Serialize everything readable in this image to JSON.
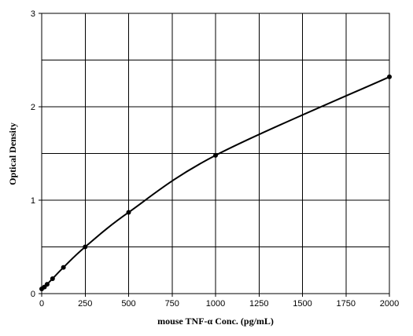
{
  "chart_data": {
    "type": "line",
    "title": "",
    "xlabel": "mouse TNF-α Conc. (pg/mL)",
    "ylabel": "Optical Density",
    "xlim": [
      0,
      2000
    ],
    "ylim": [
      0,
      3
    ],
    "x_ticks": [
      0,
      250,
      500,
      750,
      1000,
      1250,
      1500,
      1750,
      2000
    ],
    "y_ticks": [
      0,
      1,
      2,
      3
    ],
    "y_minor_gridlines": [
      0.5,
      1.5,
      2.5
    ],
    "grid": true,
    "legend": "none",
    "series": [
      {
        "points": [
          {
            "x": 0,
            "y": 0.05
          },
          {
            "x": 15.6,
            "y": 0.07
          },
          {
            "x": 31.25,
            "y": 0.1
          },
          {
            "x": 62.5,
            "y": 0.16
          },
          {
            "x": 125,
            "y": 0.28
          },
          {
            "x": 250,
            "y": 0.5
          },
          {
            "x": 500,
            "y": 0.87
          },
          {
            "x": 1000,
            "y": 1.48
          },
          {
            "x": 2000,
            "y": 2.32
          }
        ]
      }
    ]
  }
}
